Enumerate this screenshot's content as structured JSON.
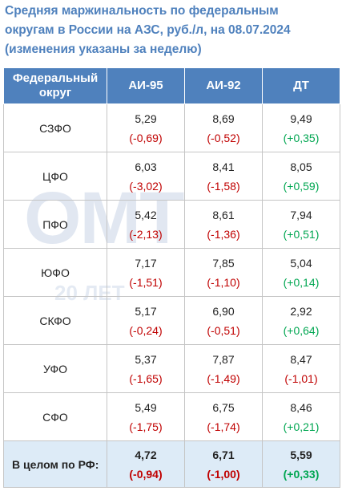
{
  "title": {
    "line1": "Средняя маржинальность по федеральным",
    "line2": "округам в России на АЗС, руб./л, на 08.07.2024",
    "line3": "(изменения указаны за неделю)"
  },
  "watermark": {
    "logo": "ОМТ",
    "subtitle": "20 ЛЕТ"
  },
  "colors": {
    "header_bg": "#4f81bd",
    "negative": "#c00000",
    "positive": "#00a651",
    "total_bg": "#ddebf7"
  },
  "table": {
    "headers": [
      "Федеральный округ",
      "АИ-95",
      "АИ-92",
      "ДТ"
    ],
    "rows": [
      {
        "region": "СЗФО",
        "cells": [
          {
            "value": "5,29",
            "change": "(-0,69)",
            "sign": "neg"
          },
          {
            "value": "8,69",
            "change": "(-0,52)",
            "sign": "neg"
          },
          {
            "value": "9,49",
            "change": "(+0,35)",
            "sign": "pos"
          }
        ]
      },
      {
        "region": "ЦФО",
        "cells": [
          {
            "value": "6,03",
            "change": "(-3,02)",
            "sign": "neg"
          },
          {
            "value": "8,41",
            "change": "(-1,58)",
            "sign": "neg"
          },
          {
            "value": "8,05",
            "change": "(+0,59)",
            "sign": "pos"
          }
        ]
      },
      {
        "region": "ПФО",
        "cells": [
          {
            "value": "5,42",
            "change": "(-2,13)",
            "sign": "neg"
          },
          {
            "value": "8,61",
            "change": "(-1,36)",
            "sign": "neg"
          },
          {
            "value": "7,94",
            "change": "(+0,51)",
            "sign": "pos"
          }
        ]
      },
      {
        "region": "ЮФО",
        "cells": [
          {
            "value": "7,17",
            "change": "(-1,51)",
            "sign": "neg"
          },
          {
            "value": "7,85",
            "change": "(-1,10)",
            "sign": "neg"
          },
          {
            "value": "5,04",
            "change": "(+0,14)",
            "sign": "pos"
          }
        ]
      },
      {
        "region": "СКФО",
        "cells": [
          {
            "value": "5,17",
            "change": "(-0,24)",
            "sign": "neg"
          },
          {
            "value": "6,90",
            "change": "(-0,51)",
            "sign": "neg"
          },
          {
            "value": "2,92",
            "change": "(+0,64)",
            "sign": "pos"
          }
        ]
      },
      {
        "region": "УФО",
        "cells": [
          {
            "value": "5,37",
            "change": "(-1,65)",
            "sign": "neg"
          },
          {
            "value": "7,87",
            "change": "(-1,49)",
            "sign": "neg"
          },
          {
            "value": "8,47",
            "change": "(-1,01)",
            "sign": "neg"
          }
        ]
      },
      {
        "region": "СФО",
        "cells": [
          {
            "value": "5,49",
            "change": "(-1,75)",
            "sign": "neg"
          },
          {
            "value": "6,75",
            "change": "(-1,74)",
            "sign": "neg"
          },
          {
            "value": "8,46",
            "change": "(+0,21)",
            "sign": "pos"
          }
        ]
      }
    ],
    "total": {
      "region": "В целом по РФ:",
      "cells": [
        {
          "value": "4,72",
          "change": "(-0,94)",
          "sign": "neg"
        },
        {
          "value": "6,71",
          "change": "(-1,00)",
          "sign": "neg"
        },
        {
          "value": "5,59",
          "change": "(+0,33)",
          "sign": "pos"
        }
      ]
    }
  }
}
